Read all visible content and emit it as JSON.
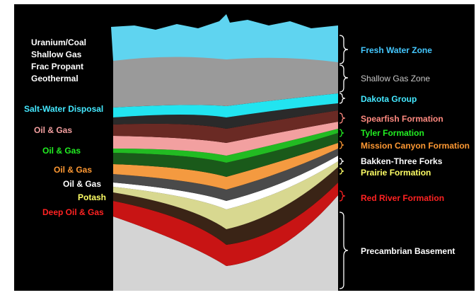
{
  "uses_top": [
    "Uranium/Coal",
    "Shallow Gas",
    "Frac Propant",
    "Geothermal"
  ],
  "uses": [
    {
      "label": "Salt-Water Disposal",
      "color": "#44e8ff"
    },
    {
      "label": "Oil & Gas",
      "color": "#f4a0a0"
    },
    {
      "label": "Oil & Gas",
      "color": "#22ee22"
    },
    {
      "label": "Oil & Gas",
      "color": "#ff9933"
    },
    {
      "label": "Oil & Gas",
      "color": "#ffffff"
    },
    {
      "label": "Potash",
      "color": "#ffff66"
    },
    {
      "label": "Deep Oil & Gas",
      "color": "#ff2222"
    }
  ],
  "formations": [
    {
      "name": "Fresh Water Zone",
      "color": "#44c8ff",
      "fill": "#5fd4f0"
    },
    {
      "name": "Shallow Gas Zone",
      "color": "#c8c8c8",
      "fill": "#9a9a9a"
    },
    {
      "name": "Dakota Group",
      "color": "#44e8ff",
      "fill": "#22e4f0"
    },
    {
      "name": "Spearfish Formation",
      "color": "#ff8a80",
      "fill": "#6a2a24"
    },
    {
      "name": "Tyler Formation",
      "color": "#22ee22",
      "fill": "#22bb22"
    },
    {
      "name": "Mission Canyon Formation",
      "color": "#ff9933",
      "fill": "#f49a40"
    },
    {
      "name": "Bakken-Three Forks",
      "color": "#ffffff",
      "fill": "#ffffff"
    },
    {
      "name": "Prairie Formation",
      "color": "#ffff66",
      "fill": "#d8d890"
    },
    {
      "name": "Red River Formation",
      "color": "#ff2222",
      "fill": "#c81414"
    },
    {
      "name": "Precambrian Basement",
      "color": "#ffffff",
      "fill": "#d4d4d4"
    }
  ]
}
